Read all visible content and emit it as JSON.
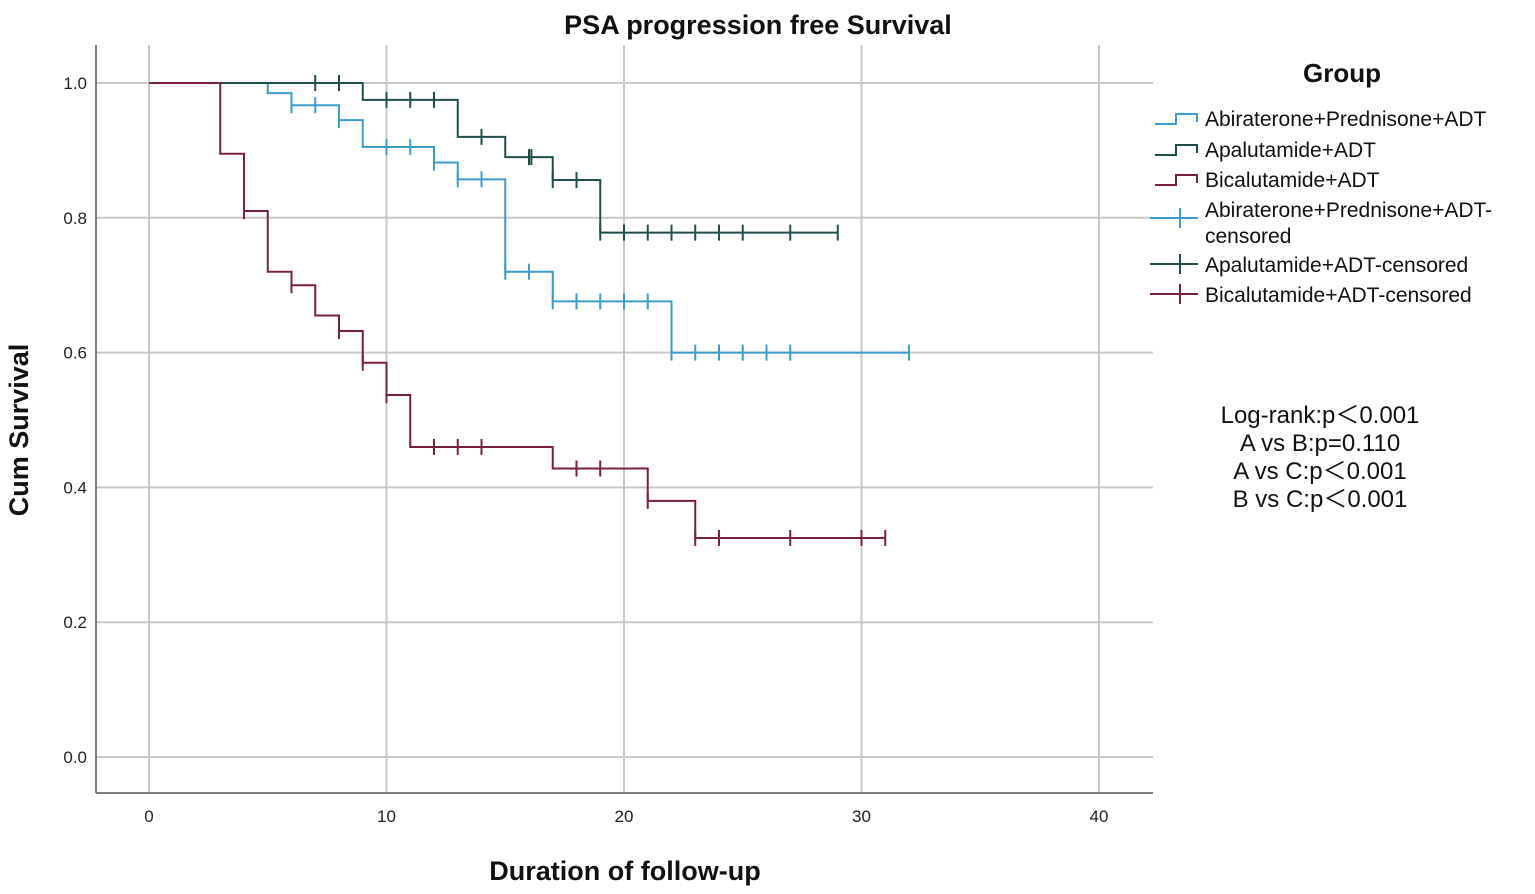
{
  "chart_data": {
    "type": "line",
    "subtype": "kaplan-meier",
    "title": "PSA progression free Survival",
    "xlabel": "Duration of follow-up",
    "ylabel": "Cum Survival",
    "xlim": [
      0,
      40
    ],
    "ylim": [
      0,
      1
    ],
    "xticks": [
      "0",
      "10",
      "20",
      "30",
      "40"
    ],
    "yticks": [
      "0.0",
      "0.2",
      "0.4",
      "0.6",
      "0.8",
      "1.0"
    ],
    "grid": true,
    "legend": {
      "title": "Group",
      "placement": "right",
      "entries": [
        "Abiraterone+Prednisone+ADT",
        "Apalutamide+ADT",
        "Bicalutamide+ADT",
        "Abiraterone+Prednisone+ADT-",
        "censored",
        "Apalutamide+ADT-censored",
        "Bicalutamide+ADT-censored"
      ]
    },
    "annotations": [
      "Log-rank:p＜0.001",
      "A vs B:p=0.110",
      "A vs C:p＜0.001",
      "B vs C:p＜0.001"
    ],
    "series": [
      {
        "name": "Abiraterone+Prednisone+ADT",
        "color": "#3a9ccc",
        "steps": [
          [
            5,
            0.985
          ],
          [
            6,
            0.967
          ],
          [
            8,
            0.945
          ],
          [
            9,
            0.905
          ],
          [
            12,
            0.882
          ],
          [
            13,
            0.857
          ],
          [
            15,
            0.72
          ],
          [
            17,
            0.676
          ],
          [
            22,
            0.6
          ]
        ],
        "censored": [
          6,
          7,
          8,
          10,
          11,
          12,
          13,
          14,
          15,
          16,
          17,
          18,
          19,
          20,
          21,
          22,
          23,
          24,
          25,
          26,
          27,
          32
        ]
      },
      {
        "name": "Apalutamide+ADT",
        "color": "#1f4f4a",
        "steps": [
          [
            9,
            0.975
          ],
          [
            13,
            0.92
          ],
          [
            15,
            0.89
          ],
          [
            17,
            0.856
          ],
          [
            19,
            0.778
          ]
        ],
        "censored": [
          7,
          8,
          10,
          11,
          12,
          14,
          16,
          16.1,
          17,
          18,
          19,
          20,
          21,
          22,
          23,
          24,
          25,
          27,
          29
        ]
      },
      {
        "name": "Bicalutamide+ADT",
        "color": "#7a1f40",
        "steps": [
          [
            3,
            0.895
          ],
          [
            4,
            0.81
          ],
          [
            5,
            0.72
          ],
          [
            6,
            0.7
          ],
          [
            7,
            0.655
          ],
          [
            8,
            0.632
          ],
          [
            9,
            0.585
          ],
          [
            10,
            0.537
          ],
          [
            11,
            0.46
          ],
          [
            17,
            0.428
          ],
          [
            21,
            0.38
          ],
          [
            23,
            0.325
          ]
        ],
        "censored": [
          4,
          6,
          8,
          9,
          10,
          12,
          13,
          14,
          18,
          19,
          21,
          23,
          24,
          27,
          30,
          31
        ]
      }
    ]
  }
}
